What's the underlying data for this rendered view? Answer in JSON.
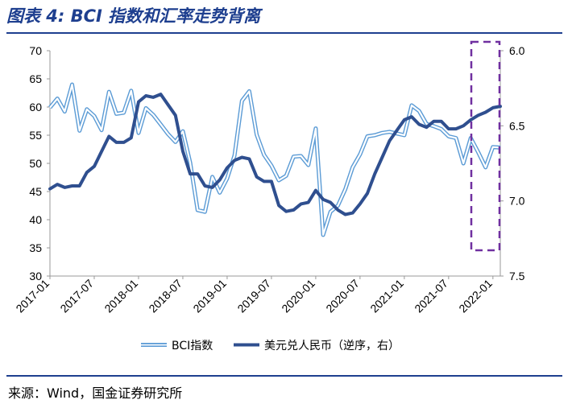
{
  "header": {
    "title": "图表 4: BCI 指数和汇率走势背离"
  },
  "footer": {
    "source": "来源：Wind，国金证券研究所"
  },
  "colors": {
    "title": "#1e3f8f",
    "bci": "#5b9bd5",
    "fx": "#2f4f8f",
    "highlight_box": "#7030a0"
  },
  "chart_data": {
    "type": "line",
    "x_ticks": [
      "2017-01",
      "2017-07",
      "2018-01",
      "2018-07",
      "2019-01",
      "2019-07",
      "2020-01",
      "2020-07",
      "2021-01",
      "2021-07",
      "2022-01"
    ],
    "y_left": {
      "lim": [
        30,
        70
      ],
      "ticks": [
        "70",
        "65",
        "60",
        "55",
        "50",
        "45",
        "40",
        "35",
        "30"
      ]
    },
    "y_right": {
      "lim": [
        6.0,
        7.5
      ],
      "inverted": true,
      "ticks": [
        "6.0",
        "6.5",
        "7.0",
        "7.5"
      ]
    },
    "legend_position": "bottom",
    "series": [
      {
        "name": "BCI指数",
        "axis": "left",
        "style": "double-line",
        "values": [
          59.9,
          61.5,
          59.2,
          64.0,
          55.8,
          59.6,
          58.4,
          55.9,
          62.7,
          58.8,
          59.0,
          62.9,
          55.4,
          59.8,
          58.6,
          56.9,
          55.2,
          53.8,
          55.7,
          50.1,
          41.7,
          41.4,
          47.6,
          44.8,
          47.3,
          51.4,
          61.1,
          62.8,
          55.1,
          51.5,
          49.6,
          47.0,
          47.8,
          51.2,
          51.3,
          49.7,
          56.2,
          37.3,
          41.4,
          42.5,
          45.4,
          49.3,
          51.6,
          54.8,
          55.0,
          55.4,
          55.6,
          55.3,
          55.0,
          60.3,
          59.3,
          57.0,
          56.6,
          56.1,
          54.8,
          54.5,
          50.0,
          54.5,
          52.0,
          49.3,
          52.9,
          52.8
        ],
        "line": []
      },
      {
        "name": "美元兑人民币（逆序，右）",
        "axis": "right",
        "values": [
          6.92,
          6.89,
          6.91,
          6.9,
          6.9,
          6.81,
          6.77,
          6.67,
          6.57,
          6.61,
          6.61,
          6.58,
          6.34,
          6.3,
          6.31,
          6.29,
          6.36,
          6.43,
          6.67,
          6.82,
          6.82,
          6.9,
          6.91,
          6.86,
          6.78,
          6.73,
          6.71,
          6.72,
          6.84,
          6.87,
          6.87,
          7.03,
          7.07,
          7.06,
          7.02,
          7.01,
          6.93,
          6.99,
          7.01,
          7.06,
          7.09,
          7.08,
          7.02,
          6.95,
          6.82,
          6.71,
          6.6,
          6.53,
          6.46,
          6.44,
          6.49,
          6.51,
          6.47,
          6.47,
          6.52,
          6.52,
          6.5,
          6.46,
          6.43,
          6.41,
          6.38,
          6.37
        ],
        "line": []
      }
    ],
    "highlight": {
      "x_range": [
        "2021-10",
        "2022-01"
      ],
      "style": "dashed-box"
    }
  }
}
